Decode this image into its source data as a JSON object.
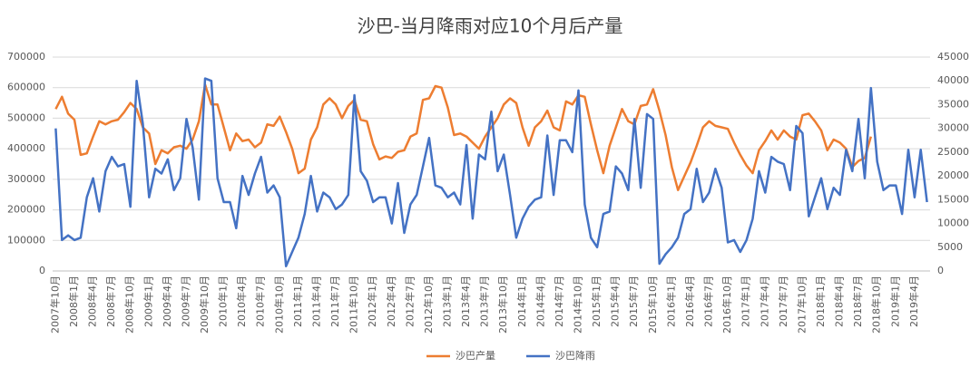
{
  "chart_data": {
    "type": "line",
    "title": "沙巴-当月降雨对应10个月后产量",
    "categories": [
      "2007年10月",
      null,
      null,
      "2008年1月",
      null,
      null,
      "2008年4月",
      null,
      null,
      "2008年7月",
      null,
      null,
      "2008年10月",
      null,
      null,
      "2009年1月",
      null,
      null,
      "2009年4月",
      null,
      null,
      "2009年7月",
      null,
      null,
      "2009年10月",
      null,
      null,
      "2010年1月",
      null,
      null,
      "2010年4月",
      null,
      null,
      "2010年7月",
      null,
      null,
      "2010年10月",
      null,
      null,
      "2011年1月",
      null,
      null,
      "2011年4月",
      null,
      null,
      "2011年7月",
      null,
      null,
      "2011年10月",
      null,
      null,
      "2012年1月",
      null,
      null,
      "2012年4月",
      null,
      null,
      "2012年7月",
      null,
      null,
      "2012年10月",
      null,
      null,
      "2013年1月",
      null,
      null,
      "2013年4月",
      null,
      null,
      "2013年7月",
      null,
      null,
      "2013年10月",
      null,
      null,
      "2014年1月",
      null,
      null,
      "2014年4月",
      null,
      null,
      "2014年7月",
      null,
      null,
      "2014年10月",
      null,
      null,
      "2015年1月",
      null,
      null,
      "2015年4月",
      null,
      null,
      "2015年7月",
      null,
      null,
      "2015年10月",
      null,
      null,
      "2016年1月",
      null,
      null,
      "2016年4月",
      null,
      null,
      "2016年7月",
      null,
      null,
      "2016年10月",
      null,
      null,
      "2017年1月",
      null,
      null,
      "2017年4月",
      null,
      null,
      "2017年7月",
      null,
      null,
      "2017年10月",
      null,
      null,
      "2018年1月",
      null,
      null,
      "2018年4月",
      null,
      null,
      "2018年7月",
      null,
      null,
      "2018年10月",
      null,
      null,
      "2019年1月",
      null,
      null,
      "2019年4月",
      null,
      null
    ],
    "series": [
      {
        "name": "沙巴产量",
        "color": "#ed7d31",
        "axis": "y",
        "values": [
          530000,
          570000,
          515000,
          495000,
          380000,
          385000,
          440000,
          490000,
          480000,
          490000,
          495000,
          520000,
          550000,
          530000,
          470000,
          450000,
          350000,
          395000,
          385000,
          405000,
          410000,
          400000,
          430000,
          490000,
          610000,
          545000,
          545000,
          470000,
          395000,
          450000,
          425000,
          430000,
          405000,
          420000,
          480000,
          475000,
          505000,
          455000,
          400000,
          320000,
          335000,
          430000,
          470000,
          545000,
          565000,
          545000,
          500000,
          540000,
          560000,
          495000,
          490000,
          415000,
          365000,
          375000,
          370000,
          390000,
          395000,
          440000,
          450000,
          560000,
          565000,
          605000,
          600000,
          535000,
          445000,
          450000,
          440000,
          420000,
          400000,
          440000,
          470000,
          500000,
          545000,
          565000,
          550000,
          470000,
          410000,
          470000,
          490000,
          525000,
          470000,
          460000,
          555000,
          545000,
          575000,
          570000,
          480000,
          395000,
          320000,
          410000,
          470000,
          530000,
          490000,
          480000,
          540000,
          545000,
          595000,
          525000,
          445000,
          340000,
          265000,
          310000,
          355000,
          410000,
          470000,
          490000,
          475000,
          470000,
          465000,
          420000,
          380000,
          345000,
          320000,
          395000,
          425000,
          460000,
          430000,
          460000,
          440000,
          430000,
          510000,
          515000,
          490000,
          460000,
          395000,
          430000,
          420000,
          400000,
          340000,
          360000,
          370000,
          440000,
          null,
          null,
          null,
          null,
          null,
          null,
          null,
          null,
          null
        ]
      },
      {
        "name": "沙巴降雨",
        "color": "#4472c4",
        "axis": "y2",
        "values": [
          30000,
          6500,
          7500,
          6500,
          7000,
          15500,
          19500,
          12500,
          21000,
          24000,
          22000,
          22500,
          13500,
          40000,
          31000,
          15500,
          21500,
          20500,
          23500,
          17000,
          19500,
          32000,
          26000,
          15000,
          40500,
          40000,
          19500,
          14500,
          14500,
          9000,
          20000,
          16000,
          20500,
          24000,
          16500,
          18000,
          15500,
          1000,
          4000,
          7000,
          12000,
          20000,
          12500,
          16500,
          15500,
          13000,
          14000,
          16000,
          37000,
          21000,
          19000,
          14500,
          15500,
          15500,
          10000,
          18500,
          8000,
          14000,
          16000,
          22000,
          28000,
          18000,
          17500,
          15500,
          16500,
          14000,
          26500,
          11000,
          24500,
          23500,
          33500,
          21000,
          24500,
          16000,
          7000,
          11000,
          13500,
          15000,
          15500,
          28500,
          16000,
          27500,
          27500,
          25000,
          38000,
          14000,
          7000,
          5000,
          12000,
          12500,
          22000,
          20500,
          17000,
          32000,
          17500,
          33000,
          32000,
          1500,
          3500,
          5000,
          7000,
          12000,
          13000,
          21500,
          14500,
          16500,
          21500,
          17500,
          6000,
          6500,
          4000,
          6500,
          11000,
          21000,
          16500,
          24000,
          23000,
          22500,
          17000,
          30500,
          29000,
          11500,
          15500,
          19500,
          13000,
          17500,
          16000,
          25500,
          21000,
          32000,
          19500,
          38500,
          23000,
          17000,
          18000,
          18000,
          12000,
          25500,
          15500,
          25500,
          14500
        ]
      }
    ],
    "ylim": [
      0,
      700000
    ],
    "yticks": [
      0,
      100000,
      200000,
      300000,
      400000,
      500000,
      600000,
      700000
    ],
    "y2lim": [
      0,
      45000
    ],
    "y2ticks": [
      0,
      5000,
      10000,
      15000,
      20000,
      25000,
      30000,
      35000,
      40000,
      45000
    ],
    "grid": true,
    "legend": "bottom"
  }
}
